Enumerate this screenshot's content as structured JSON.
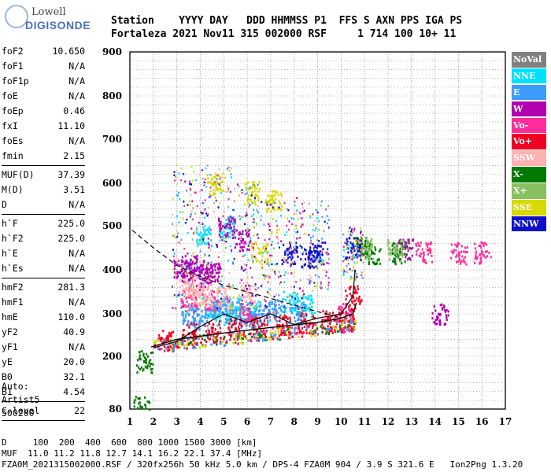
{
  "logo": {
    "line1": "Lowell",
    "line2": "DIGISONDE"
  },
  "header": {
    "line1": "Station    YYYY DAY   DDD HHMMSS P1  FFS S AXN PPS IGA PS",
    "line2": "Fortaleza 2021 Nov11 315 002000 RSF     1 714 100 10+ 11"
  },
  "params": {
    "group1": [
      {
        "k": "foF2",
        "v": "10.650"
      },
      {
        "k": "foF1",
        "v": "N/A"
      },
      {
        "k": "foF1p",
        "v": "N/A"
      },
      {
        "k": "foE",
        "v": "N/A"
      },
      {
        "k": "foEp",
        "v": "0.46"
      },
      {
        "k": "fxI",
        "v": "11.10"
      },
      {
        "k": "foEs",
        "v": "N/A"
      },
      {
        "k": "fmin",
        "v": "2.15"
      }
    ],
    "group2": [
      {
        "k": "MUF(D)",
        "v": "37.39"
      },
      {
        "k": "M(D)",
        "v": "3.51"
      },
      {
        "k": "D",
        "v": "N/A"
      }
    ],
    "group3": [
      {
        "k": "h`F",
        "v": "225.0"
      },
      {
        "k": "h`F2",
        "v": "225.0"
      },
      {
        "k": "h`E",
        "v": "N/A"
      },
      {
        "k": "h`Es",
        "v": "N/A"
      }
    ],
    "group4": [
      {
        "k": "hmF2",
        "v": "281.3"
      },
      {
        "k": "hmF1",
        "v": "N/A"
      },
      {
        "k": "hmE",
        "v": "110.0"
      },
      {
        "k": "yF2",
        "v": "40.9"
      },
      {
        "k": "yF1",
        "v": "N/A"
      },
      {
        "k": "yE",
        "v": "20.0"
      },
      {
        "k": "B0",
        "v": "32.1"
      },
      {
        "k": "B1",
        "v": "4.54"
      }
    ],
    "group5": [
      {
        "k": "C-level",
        "v": "22"
      }
    ]
  },
  "auto": {
    "line1": "Auto:",
    "line2": "Artist5",
    "line3": "500200"
  },
  "legend": [
    {
      "label": "NoVal",
      "color": "#808080"
    },
    {
      "label": "NNE",
      "color": "#00e0ff"
    },
    {
      "label": "E",
      "color": "#3c9cff"
    },
    {
      "label": "W",
      "color": "#b000b0"
    },
    {
      "label": "Vo-",
      "color": "#ff2d9b"
    },
    {
      "label": "Vo+",
      "color": "#ee0022"
    },
    {
      "label": "SSW",
      "color": "#ffb0b0"
    },
    {
      "label": "X-",
      "color": "#007a00"
    },
    {
      "label": "X+",
      "color": "#88c060"
    },
    {
      "label": "SSE",
      "color": "#d8d800"
    },
    {
      "label": "NNW",
      "color": "#1010c8"
    }
  ],
  "footer": {
    "line1": "D     100  200  400  600  800 1000 1500 3000 [km]",
    "line2": "MUF  11.0 11.2 11.8 12.7 14.1 16.2 22.1 37.4 [MHz]",
    "line3": "FZA0M_2021315002000.RSF / 320fx256h 50 kHz 5.0 km / DPS-4 FZA0M 904 / 3.9 S 321.6 E   Ion2Png 1.3.20"
  },
  "chart_data": {
    "type": "scatter",
    "title": "",
    "xlabel": "",
    "ylabel": "",
    "xlim": [
      1,
      17
    ],
    "ylim": [
      80,
      900
    ],
    "x_ticks": [
      1,
      2,
      3,
      4,
      5,
      6,
      7,
      8,
      9,
      10,
      11,
      12,
      13,
      14,
      15,
      16,
      17
    ],
    "y_ticks": [
      80,
      200,
      300,
      400,
      500,
      600,
      700,
      800,
      900
    ],
    "y_scale": "nonlinear (height in km)",
    "grid": true,
    "legend_position": "right",
    "series": [
      {
        "name": "NNE",
        "points": [
          [
            4.5,
            310
          ],
          [
            5.0,
            300
          ],
          [
            5.5,
            315
          ],
          [
            6.2,
            305
          ],
          [
            7.8,
            330
          ],
          [
            8.5,
            320
          ],
          [
            4.1,
            480
          ],
          [
            5.1,
            500
          ]
        ]
      },
      {
        "name": "E",
        "points": [
          [
            3.5,
            300
          ],
          [
            4.0,
            290
          ],
          [
            4.8,
            320
          ],
          [
            5.4,
            305
          ],
          [
            6.0,
            290
          ],
          [
            6.6,
            300
          ],
          [
            7.2,
            310
          ],
          [
            8.1,
            300
          ]
        ]
      },
      {
        "name": "W",
        "points": [
          [
            3.2,
            400
          ],
          [
            3.5,
            410
          ],
          [
            3.8,
            400
          ],
          [
            4.1,
            380
          ],
          [
            4.5,
            395
          ],
          [
            5.1,
            500
          ],
          [
            5.8,
            470
          ],
          [
            12.7,
            450
          ],
          [
            14.2,
            300
          ]
        ]
      },
      {
        "name": "Vo-",
        "points": [
          [
            3.5,
            340
          ],
          [
            4.5,
            330
          ],
          [
            6.0,
            300
          ],
          [
            10.2,
            300
          ],
          [
            13.5,
            440
          ],
          [
            15.0,
            440
          ],
          [
            16.0,
            440
          ]
        ]
      },
      {
        "name": "Vo+",
        "points": [
          [
            2.5,
            240
          ],
          [
            3.5,
            255
          ],
          [
            4.5,
            260
          ],
          [
            5.5,
            265
          ],
          [
            6.5,
            270
          ],
          [
            7.5,
            275
          ],
          [
            8.5,
            280
          ],
          [
            9.5,
            285
          ],
          [
            10.2,
            290
          ],
          [
            10.5,
            340
          ]
        ]
      },
      {
        "name": "SSW",
        "points": [
          [
            3.4,
            360
          ],
          [
            3.8,
            350
          ],
          [
            4.2,
            345
          ],
          [
            5.0,
            340
          ],
          [
            6.0,
            350
          ]
        ]
      },
      {
        "name": "X-",
        "points": [
          [
            1.6,
            190
          ],
          [
            1.5,
            85
          ],
          [
            10.8,
            450
          ],
          [
            11.3,
            440
          ],
          [
            12.5,
            440
          ]
        ]
      },
      {
        "name": "X+",
        "points": [
          [
            11.0,
            450
          ],
          [
            12.3,
            445
          ]
        ]
      },
      {
        "name": "SSE",
        "points": [
          [
            4.6,
            600
          ],
          [
            6.2,
            580
          ],
          [
            6.5,
            440
          ],
          [
            7.1,
            560
          ]
        ]
      },
      {
        "name": "NNW",
        "points": [
          [
            7.8,
            440
          ],
          [
            8.6,
            430
          ],
          [
            9.0,
            440
          ],
          [
            10.5,
            450
          ]
        ]
      }
    ]
  }
}
